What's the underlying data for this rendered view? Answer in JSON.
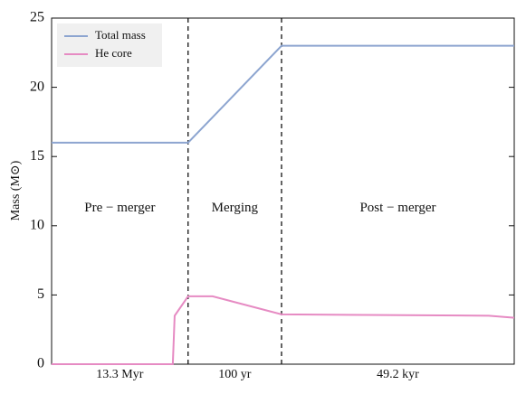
{
  "chart_data": {
    "type": "line",
    "y_label": "Mass (M⊙)",
    "xlim": [
      0,
      100
    ],
    "ylim": [
      0,
      25
    ],
    "yticks": [
      0,
      5,
      10,
      15,
      20,
      25
    ],
    "phase_boundaries": [
      29.5,
      49.7
    ],
    "phase_durations": [
      "13.3 Myr",
      "100 yr",
      "49.2 kyr"
    ],
    "phase_names": [
      "Pre − merger",
      "Merging",
      "Post − merger"
    ],
    "legend": "upper left",
    "series": [
      {
        "name": "Total mass",
        "color": "#8da5d0",
        "x": [
          0,
          29.5,
          49.7,
          100
        ],
        "values": [
          16,
          16,
          23,
          23
        ]
      },
      {
        "name": "He core",
        "color": "#e68bc3",
        "x": [
          0,
          26.2,
          26.6,
          29.5,
          34.8,
          49.7,
          94.5,
          100
        ],
        "values": [
          0,
          0,
          3.5,
          4.9,
          4.9,
          3.6,
          3.5,
          3.35
        ]
      }
    ]
  }
}
